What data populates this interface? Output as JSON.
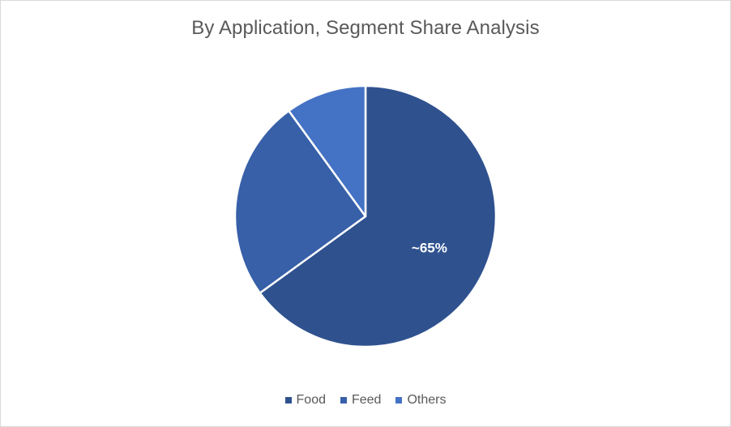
{
  "chart_data": {
    "type": "pie",
    "title": "By Application, Segment Share Analysis",
    "categories": [
      "Food",
      "Feed",
      "Others"
    ],
    "values": [
      65,
      25,
      10
    ],
    "colors": [
      "#2f528f",
      "#3760a8",
      "#4472c4"
    ],
    "data_labels": [
      "~65%",
      "",
      ""
    ],
    "legend_position": "bottom",
    "start_angle_deg": 0,
    "direction": "clockwise"
  }
}
